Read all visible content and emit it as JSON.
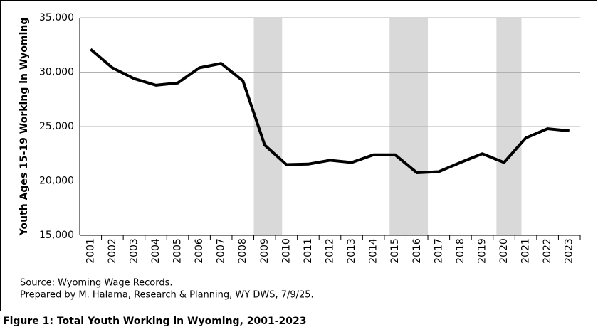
{
  "chart_data": {
    "type": "line",
    "y_label": "Youth Ages 15-19 Working in Wyoming",
    "categories": [
      "2001",
      "2002",
      "2003",
      "2004",
      "2005",
      "2006",
      "2007",
      "2008",
      "2009",
      "2010",
      "2011",
      "2012",
      "2013",
      "2014",
      "2015",
      "2016",
      "2017",
      "2018",
      "2019",
      "2020",
      "2021",
      "2022",
      "2023"
    ],
    "values": [
      32100,
      30400,
      29400,
      28800,
      29000,
      30400,
      30800,
      29200,
      23300,
      21500,
      21550,
      21900,
      21700,
      22400,
      22400,
      20750,
      20850,
      21700,
      22500,
      21700,
      23950,
      24800,
      24600
    ],
    "color": "#000000",
    "ylim": [
      15000,
      35000
    ],
    "yticks": [
      {
        "value": 15000,
        "label": "15,000"
      },
      {
        "value": 20000,
        "label": "20,000"
      },
      {
        "value": 25000,
        "label": "25,000"
      },
      {
        "value": 30000,
        "label": "30,000"
      },
      {
        "value": 35000,
        "label": "35,000"
      }
    ],
    "grid": true,
    "shaded_regions": [
      {
        "start": 2008.5,
        "end": 2009.8
      },
      {
        "start": 2014.74,
        "end": 2016.5
      },
      {
        "start": 2019.65,
        "end": 2020.8
      }
    ],
    "shade_color": "#d9d9d9",
    "notes": [
      "Source: Wyoming Wage Records.",
      "Prepared by M. Halama, Research & Planning, WY DWS, 7/9/25."
    ],
    "caption": "Figure 1: Total Youth Working in Wyoming, 2001-2023"
  }
}
